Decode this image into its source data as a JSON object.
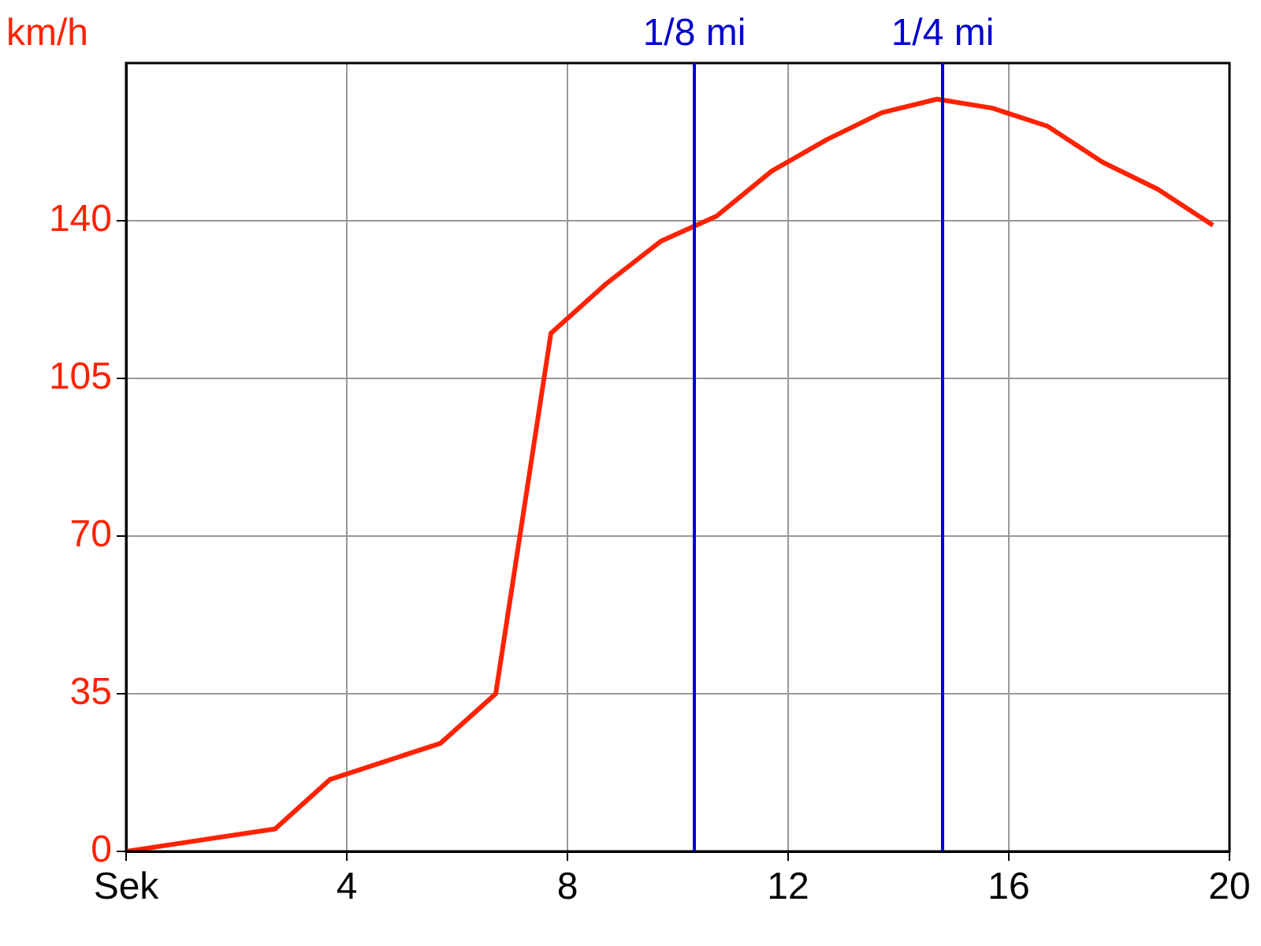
{
  "chart_data": {
    "type": "line",
    "ylabel": "km/h",
    "xlim": [
      0,
      20
    ],
    "ylim": [
      0,
      175
    ],
    "xticks": [
      {
        "value": 0,
        "label": "Sek"
      },
      4,
      8,
      12,
      16,
      20
    ],
    "yticks": [
      0,
      35,
      70,
      105,
      140
    ],
    "grid": true,
    "legend": false,
    "marker": "none",
    "line_style": "solid",
    "x": [
      0,
      2.7,
      3.7,
      5.7,
      6.7,
      7.7,
      8.7,
      9.7,
      10.7,
      11.7,
      12.7,
      13.7,
      14.7,
      15.7,
      16.7,
      17.7,
      18.7,
      19.7
    ],
    "series": [
      {
        "color": "#ff2200",
        "values": [
          0,
          5,
          16,
          24,
          35,
          115,
          126,
          135.5,
          141,
          151,
          158,
          164,
          167,
          165,
          161,
          153,
          147,
          139
        ]
      }
    ],
    "ref_lines": [
      {
        "axis": "x",
        "value": 10.3,
        "label": "1/8 mi",
        "color": "#0000cc"
      },
      {
        "axis": "x",
        "value": 14.8,
        "label": "1/4 mi",
        "color": "#0000cc"
      }
    ]
  }
}
